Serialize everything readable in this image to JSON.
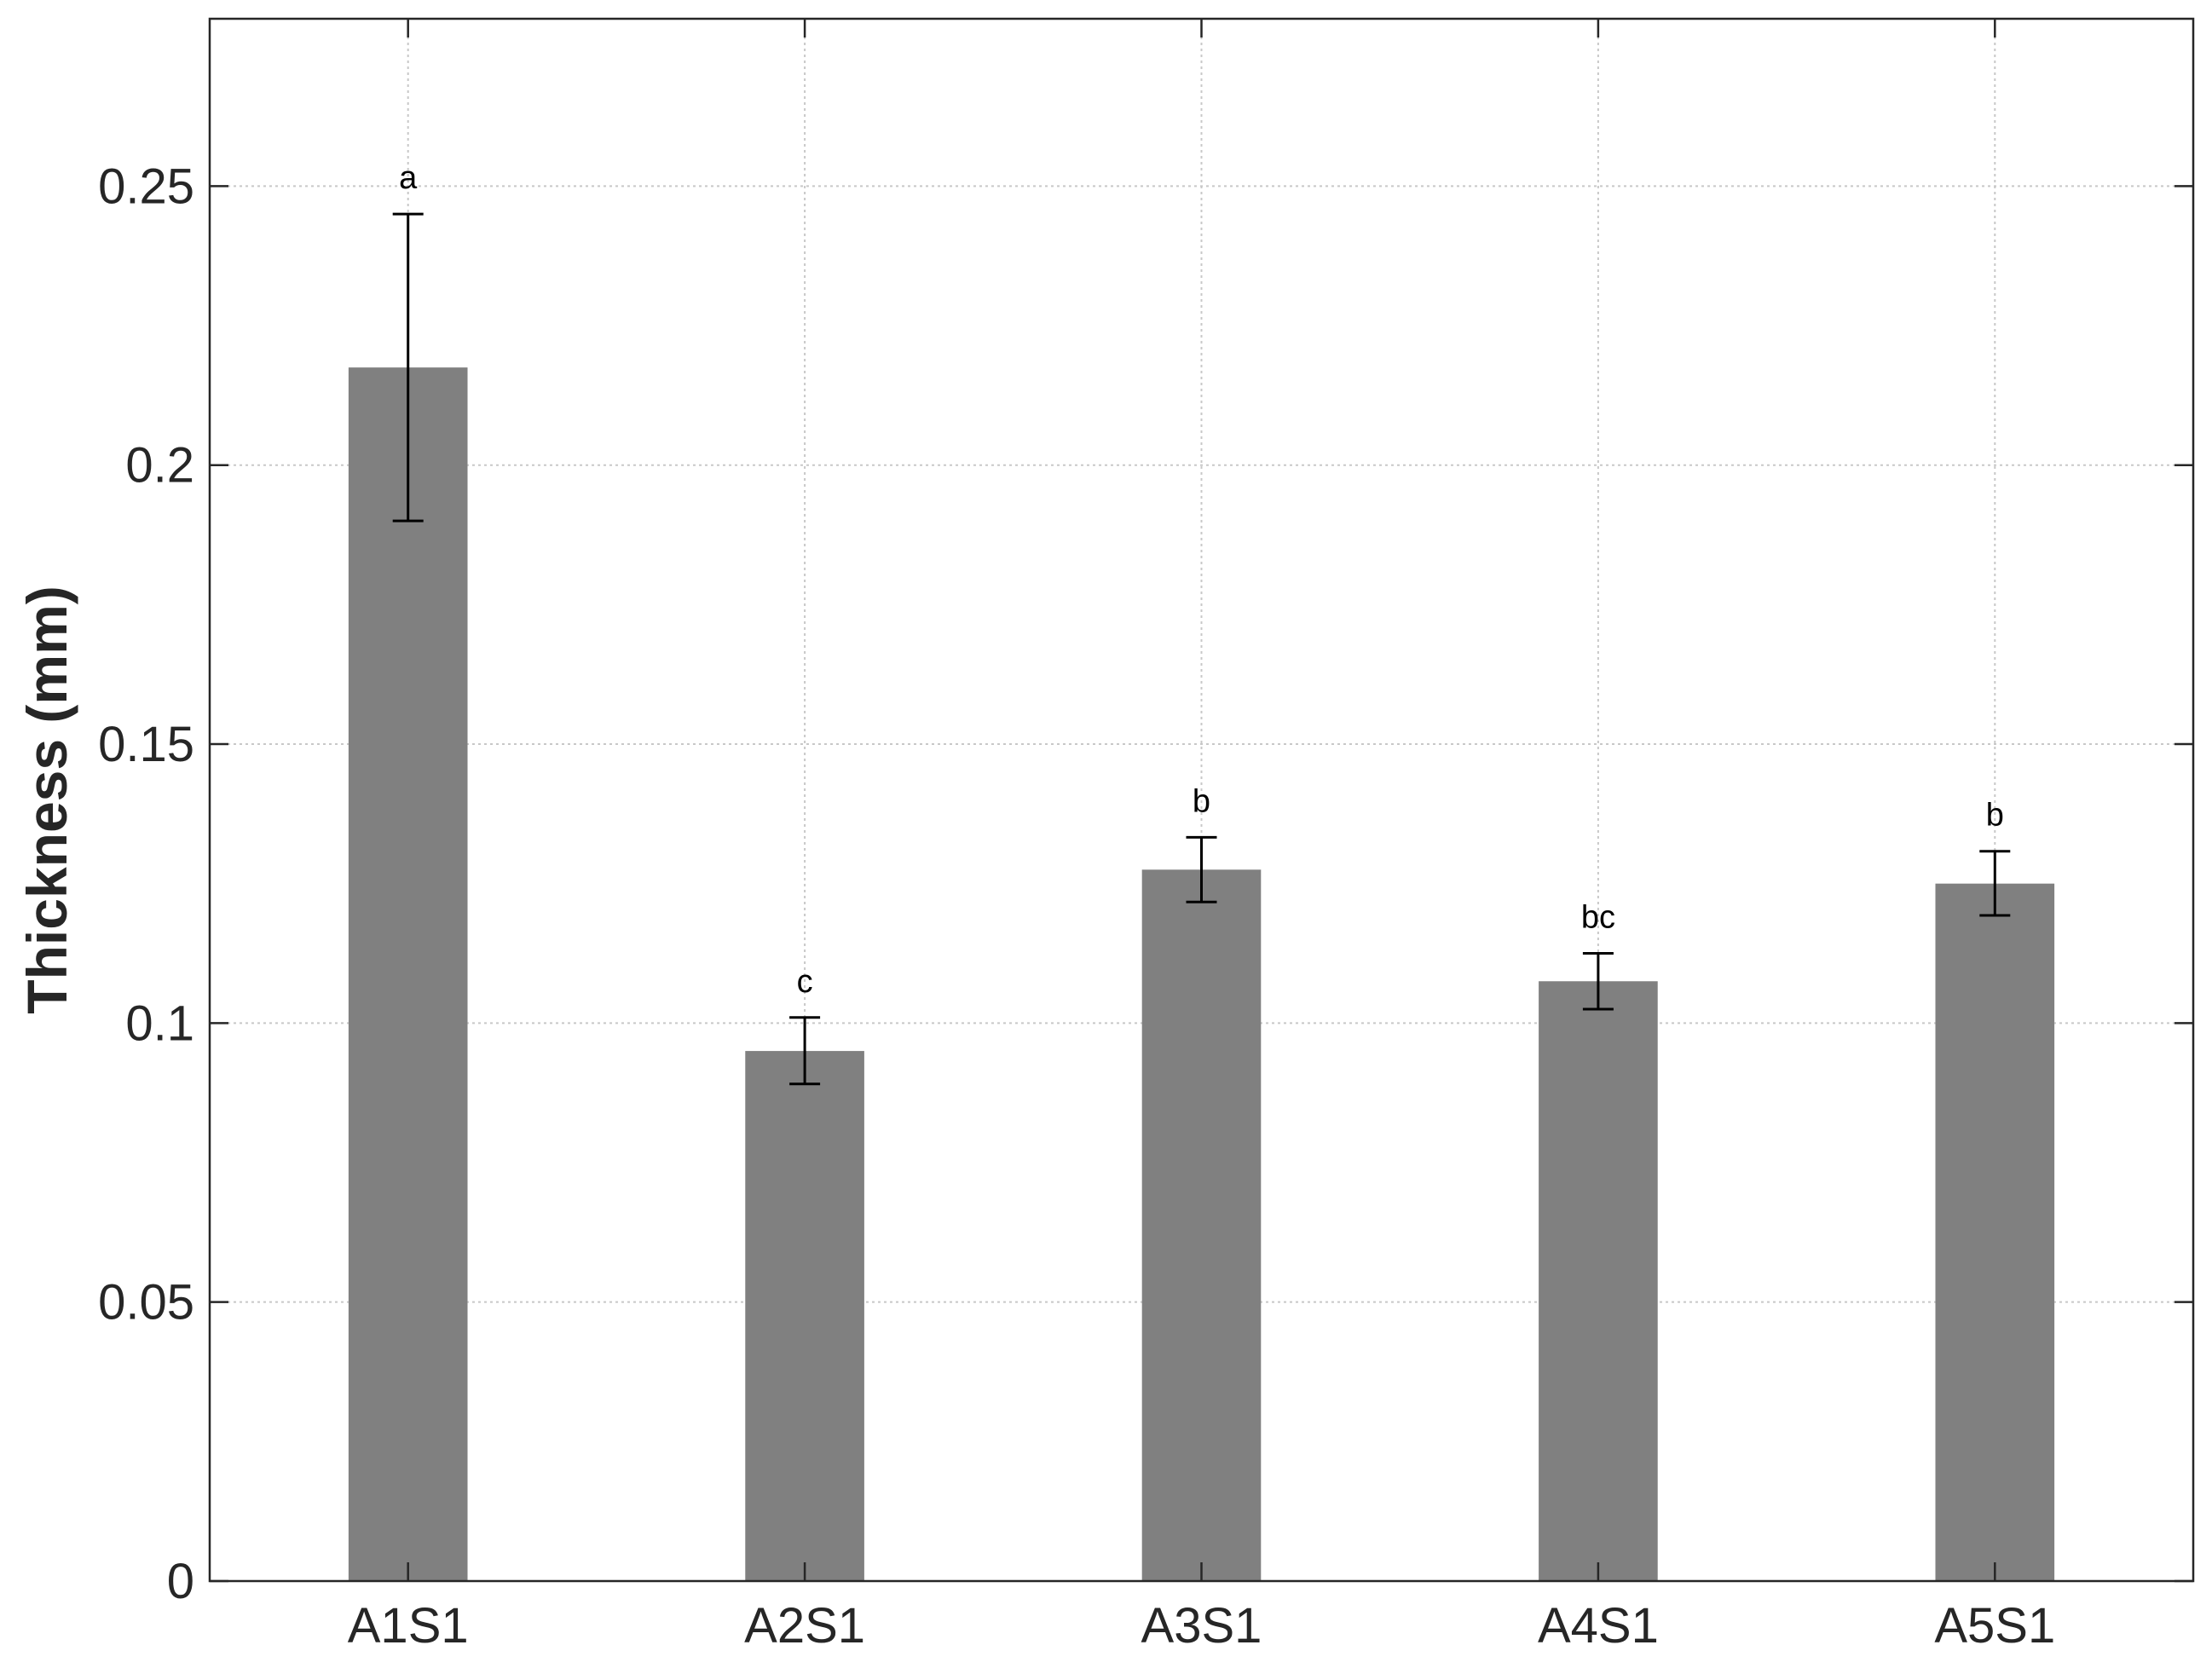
{
  "chart_data": {
    "type": "bar",
    "title": "",
    "xlabel": "",
    "ylabel": "Thickness (mm)",
    "categories": [
      "A1S1",
      "A2S1",
      "A3S1",
      "A4S1",
      "A5S1"
    ],
    "values": [
      0.2175,
      0.095,
      0.1275,
      0.1075,
      0.125
    ],
    "error_low": [
      0.19,
      0.0891,
      0.1217,
      0.1025,
      0.1193
    ],
    "error_high": [
      0.245,
      0.101,
      0.1333,
      0.1125,
      0.1308
    ],
    "significance_labels": [
      "a",
      "c",
      "b",
      "bc",
      "b"
    ],
    "ylim": [
      0,
      0.28
    ],
    "yticks": [
      0,
      0.05,
      0.1,
      0.15,
      0.2,
      0.25
    ],
    "ytick_labels": [
      "0",
      "0.05",
      "0.1",
      "0.15",
      "0.2",
      "0.25"
    ],
    "grid": true,
    "colors": {
      "bar": "#808080",
      "axis": "#262626",
      "grid": "#c8c8c8",
      "error_bar": "#000000"
    }
  }
}
